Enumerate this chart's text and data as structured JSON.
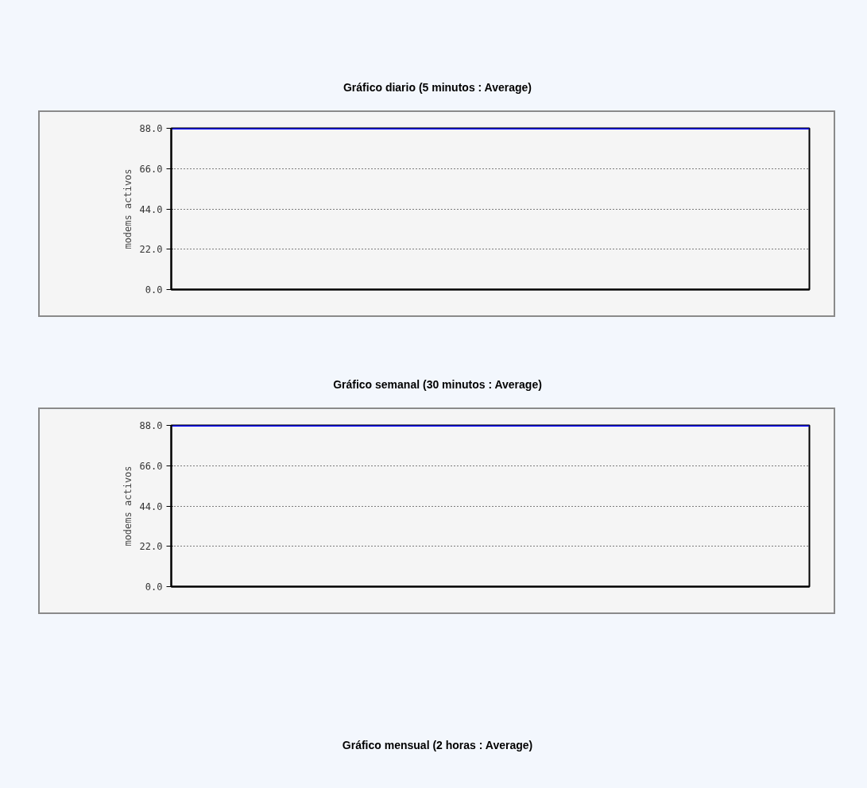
{
  "chart_data": [
    {
      "type": "line",
      "title": "Gráfico diario (5 minutos : Average)",
      "ylabel": "modems activos",
      "categories": [
        null,
        null,
        null,
        null,
        null,
        null,
        null,
        null,
        null,
        null
      ],
      "series": [
        {
          "color": "#0000ff",
          "values": [
            88,
            88,
            88,
            88,
            88,
            88,
            88,
            88,
            88,
            88
          ]
        }
      ],
      "ylim": [
        0,
        88
      ],
      "yticks": [
        {
          "value": 0,
          "label": "0.0"
        },
        {
          "value": 22,
          "label": "22.0"
        },
        {
          "value": 44,
          "label": "44.0"
        },
        {
          "value": 66,
          "label": "66.0"
        },
        {
          "value": 88,
          "label": "88.0"
        }
      ],
      "grid": "y",
      "tick_labels": "y",
      "marker": "none",
      "line_style": "solid"
    },
    {
      "type": "line",
      "title": "Gráfico semanal (30 minutos : Average)",
      "ylabel": "modems activos",
      "categories": [
        null,
        null,
        null,
        null,
        null,
        null,
        null,
        null,
        null,
        null
      ],
      "series": [
        {
          "color": "#0000ff",
          "values": [
            88,
            88,
            88,
            88,
            88,
            88,
            88,
            88,
            88,
            88
          ]
        }
      ],
      "ylim": [
        0,
        88
      ],
      "yticks": [
        {
          "value": 0,
          "label": "0.0"
        },
        {
          "value": 22,
          "label": "22.0"
        },
        {
          "value": 44,
          "label": "44.0"
        },
        {
          "value": 66,
          "label": "66.0"
        },
        {
          "value": 88,
          "label": "88.0"
        }
      ],
      "grid": "y",
      "tick_labels": "y",
      "marker": "none",
      "line_style": "solid"
    },
    {
      "type": "other",
      "title": "Gráfico mensual (2 horas : Average)"
    }
  ]
}
